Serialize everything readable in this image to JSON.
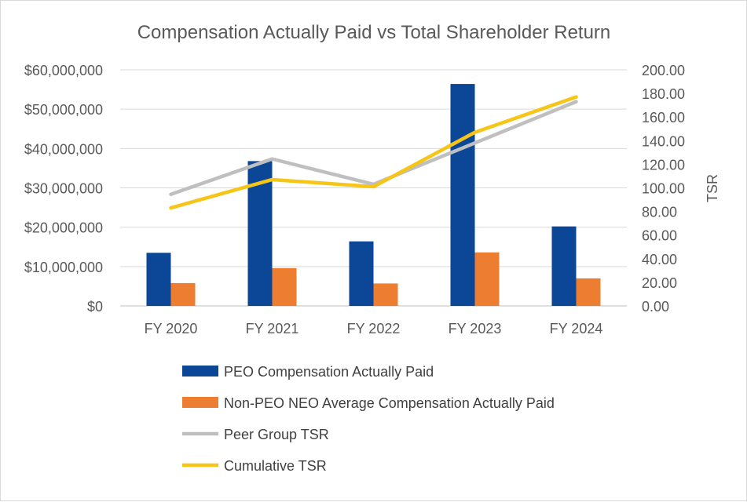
{
  "chart_data": {
    "type": "bar",
    "title": "Compensation Actually Paid vs Total Shareholder Return",
    "categories": [
      "FY 2020",
      "FY 2021",
      "FY 2022",
      "FY 2023",
      "FY 2024"
    ],
    "y_axis": {
      "label": "",
      "lim": [
        0,
        60000000
      ],
      "ticks": [
        0,
        10000000,
        20000000,
        30000000,
        40000000,
        50000000,
        60000000
      ],
      "tick_labels": [
        "$0",
        "$10,000,000",
        "$20,000,000",
        "$30,000,000",
        "$40,000,000",
        "$50,000,000",
        "$60,000,000"
      ]
    },
    "y2_axis": {
      "label": "TSR",
      "lim": [
        0,
        200
      ],
      "ticks": [
        0,
        20,
        40,
        60,
        80,
        100,
        120,
        140,
        160,
        180,
        200
      ],
      "tick_labels": [
        "0.00",
        "20.00",
        "40.00",
        "60.00",
        "80.00",
        "100.00",
        "120.00",
        "140.00",
        "160.00",
        "180.00",
        "200.00"
      ]
    },
    "grid": true,
    "legend_position": "bottom",
    "series": [
      {
        "name": "PEO Compensation Actually Paid",
        "type": "bar",
        "axis": "left",
        "color": "#0b4796",
        "values": [
          13500000,
          36800000,
          16400000,
          56400000,
          20200000
        ]
      },
      {
        "name": "Non-PEO NEO Average Compensation Actually Paid",
        "type": "bar",
        "axis": "left",
        "color": "#ed7d31",
        "values": [
          5800000,
          9600000,
          5700000,
          13600000,
          7000000
        ]
      },
      {
        "name": "Peer Group TSR",
        "type": "line",
        "axis": "right",
        "color": "#bfbfbf",
        "values": [
          94.5,
          124.5,
          103,
          138,
          173
        ]
      },
      {
        "name": "Cumulative TSR",
        "type": "line",
        "axis": "right",
        "color": "#f5c518",
        "values": [
          83,
          107,
          101,
          147,
          177
        ]
      }
    ]
  }
}
